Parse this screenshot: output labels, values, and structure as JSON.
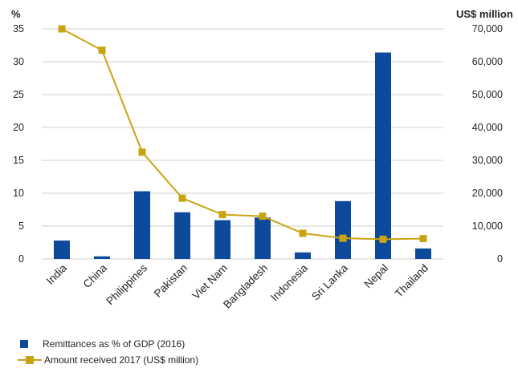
{
  "chart_data": {
    "type": "bar",
    "categories": [
      "India",
      "China",
      "Philippines",
      "Pakistan",
      "Viet Nam",
      "Bangladesh",
      "Indonesia",
      "Sri Lanka",
      "Nepal",
      "Thailand"
    ],
    "series": [
      {
        "name": "Remittances as % of GDP (2016)",
        "type": "bar",
        "axis": "left",
        "values": [
          2.8,
          0.4,
          10.3,
          7.1,
          5.9,
          6.3,
          1.0,
          8.8,
          31.4,
          1.6
        ]
      },
      {
        "name": "Amount received 2017 (US$ million)",
        "type": "line",
        "axis": "right",
        "values": [
          70000,
          63500,
          32500,
          18500,
          13500,
          13000,
          7800,
          6300,
          6000,
          6200
        ]
      }
    ],
    "y_left": {
      "unit": "%",
      "ticks": [
        "0",
        "5",
        "10",
        "15",
        "20",
        "25",
        "30",
        "35"
      ],
      "ylim": [
        0,
        35
      ]
    },
    "y_right": {
      "unit": "US$ million",
      "ticks": [
        "0",
        "10,000",
        "20,000",
        "30,000",
        "40,000",
        "50,000",
        "60,000",
        "70,000"
      ],
      "ylim": [
        0,
        70000
      ]
    },
    "grid": true,
    "legend_position": "bottom-left",
    "colors": {
      "bar": "#0d4a9c",
      "line": "#c9a411",
      "grid": "#cfcfcf"
    }
  }
}
